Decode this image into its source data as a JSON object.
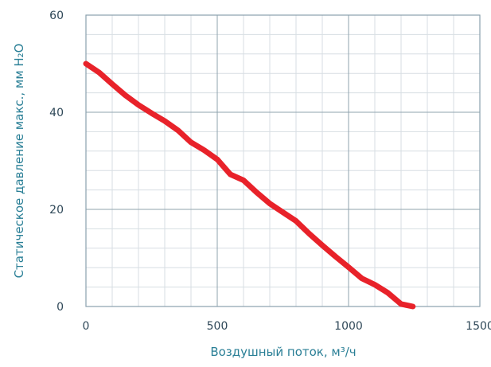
{
  "chart_data": {
    "type": "line",
    "title": "",
    "xlabel": "Воздушный поток, м³/ч",
    "ylabel": "Статическое давление макс., мм H₂O",
    "xlim": [
      0,
      1500
    ],
    "ylim": [
      0,
      60
    ],
    "x_ticks": [
      "0",
      "500",
      "1000",
      "1500"
    ],
    "y_ticks": [
      "0",
      "20",
      "40",
      "60"
    ],
    "grid": true,
    "legend": "none",
    "colors": {
      "line": "#e8222a",
      "major_grid": "#8fa3ae",
      "minor_grid": "#d7dee3",
      "frame": "#8aa0ad"
    },
    "series": [
      {
        "x": [
          0,
          50,
          100,
          150,
          200,
          250,
          300,
          350,
          400,
          450,
          500,
          550,
          600,
          650,
          700,
          750,
          800,
          850,
          900,
          950,
          1000,
          1050,
          1100,
          1150,
          1200,
          1245
        ],
        "y": [
          50,
          48.2,
          45.8,
          43.5,
          41.5,
          39.8,
          38.2,
          36.3,
          33.8,
          32.2,
          30.3,
          27.2,
          26.0,
          23.5,
          21.2,
          19.4,
          17.6,
          15.0,
          12.6,
          10.3,
          8.1,
          5.8,
          4.5,
          2.8,
          0.5,
          0
        ]
      }
    ]
  }
}
